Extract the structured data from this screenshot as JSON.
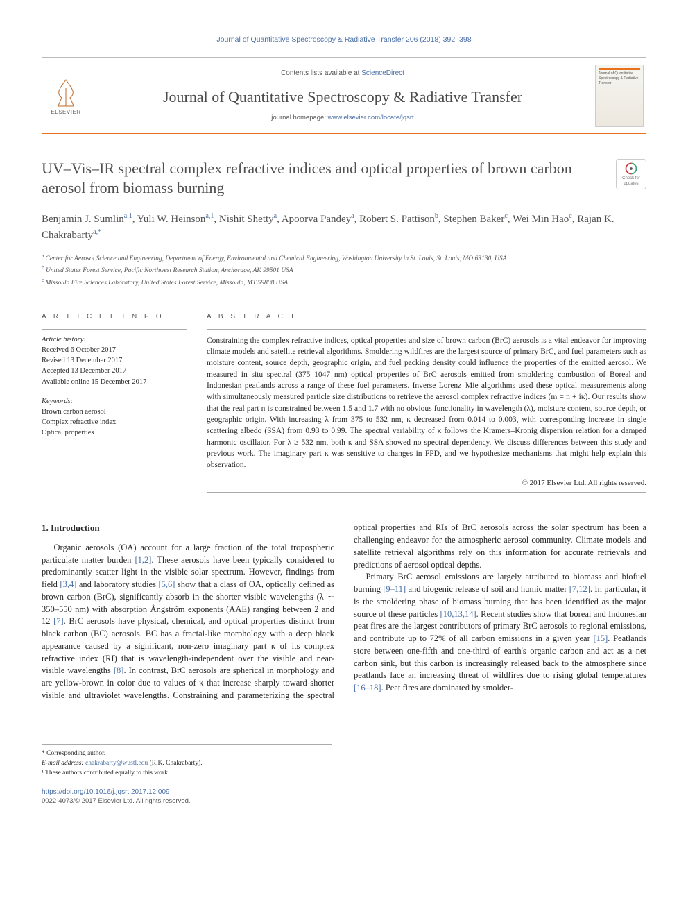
{
  "running_head": "Journal of Quantitative Spectroscopy & Radiative Transfer 206 (2018) 392–398",
  "publisher": {
    "name": "ELSEVIER"
  },
  "masthead": {
    "contents_prefix": "Contents lists available at ",
    "contents_link": "ScienceDirect",
    "journal_name": "Journal of Quantitative Spectroscopy & Radiative Transfer",
    "homepage_prefix": "journal homepage: ",
    "homepage_url": "www.elsevier.com/locate/jqsrt",
    "cover_label": "Journal of Quantitative Spectroscopy & Radiative Transfer"
  },
  "crossmark": {
    "line1": "Check for",
    "line2": "updates"
  },
  "title": "UV–Vis–IR spectral complex refractive indices and optical properties of brown carbon aerosol from biomass burning",
  "authors_html": "Benjamin J. Sumlin|a,1|, Yuli W. Heinson|a,1|, Nishit Shetty|a|, Apoorva Pandey|a|, Robert S. Pattison|b|, Stephen Baker|c|, Wei Min Hao|c|, Rajan K. Chakrabarty|a,*|",
  "affiliations": [
    {
      "key": "a",
      "text": "Center for Aerosol Science and Engineering, Department of Energy, Environmental and Chemical Engineering, Washington University in St. Louis, St. Louis, MO 63130, USA"
    },
    {
      "key": "b",
      "text": "United States Forest Service, Pacific Northwest Research Station, Anchorage, AK 99501 USA"
    },
    {
      "key": "c",
      "text": "Missoula Fire Sciences Laboratory, United States Forest Service, Missoula, MT 59808 USA"
    }
  ],
  "article_info": {
    "heading": "A R T I C L E   I N F O",
    "history_label": "Article history:",
    "history": [
      "Received 6 October 2017",
      "Revised 13 December 2017",
      "Accepted 13 December 2017",
      "Available online 15 December 2017"
    ],
    "keywords_label": "Keywords:",
    "keywords": [
      "Brown carbon aerosol",
      "Complex refractive index",
      "Optical properties"
    ]
  },
  "abstract": {
    "heading": "A B S T R A C T",
    "text": "Constraining the complex refractive indices, optical properties and size of brown carbon (BrC) aerosols is a vital endeavor for improving climate models and satellite retrieval algorithms. Smoldering wildfires are the largest source of primary BrC, and fuel parameters such as moisture content, source depth, geographic origin, and fuel packing density could influence the properties of the emitted aerosol. We measured in situ spectral (375–1047 nm) optical properties of BrC aerosols emitted from smoldering combustion of Boreal and Indonesian peatlands across a range of these fuel parameters. Inverse Lorenz–Mie algorithms used these optical measurements along with simultaneously measured particle size distributions to retrieve the aerosol complex refractive indices (m = n + iκ). Our results show that the real part n is constrained between 1.5 and 1.7 with no obvious functionality in wavelength (λ), moisture content, source depth, or geographic origin. With increasing λ from 375 to 532 nm, κ decreased from 0.014 to 0.003, with corresponding increase in single scattering albedo (SSA) from 0.93 to 0.99. The spectral variability of κ follows the Kramers–Kronig dispersion relation for a damped harmonic oscillator. For λ ≥ 532 nm, both κ and SSA showed no spectral dependency. We discuss differences between this study and previous work. The imaginary part κ was sensitive to changes in FPD, and we hypothesize mechanisms that might help explain this observation.",
    "copyright": "© 2017 Elsevier Ltd. All rights reserved."
  },
  "section1": {
    "heading": "1. Introduction",
    "p1_a": "Organic aerosols (OA) account for a large fraction of the total tropospheric particulate matter burden ",
    "p1_ref1": "[1,2]",
    "p1_b": ". These aerosols have been typically considered to predominantly scatter light in the visible solar spectrum. However, findings from field ",
    "p1_ref2": "[3,4]",
    "p1_c": " and laboratory studies ",
    "p1_ref3": "[5,6]",
    "p1_d": " show that a class of OA, optically defined as brown carbon (BrC), significantly absorb in the shorter visible wavelengths (λ ∼ 350–550 nm) with absorption Ångström exponents (AAE) ranging between 2 and 12 ",
    "p1_ref4": "[7]",
    "p1_e": ". BrC aerosols have physical, chemical, and optical properties distinct from black carbon (BC) aerosols. BC has a fractal-like morphology with a deep black appearance caused by a significant, non-zero imaginary part κ of its complex refractive index (RI) that is wavelength-independent over the visible and near-visible wavelengths ",
    "p1_ref5": "[8]",
    "p1_f": ". In contrast, BrC",
    "p2_a": "aerosols are spherical in morphology and are yellow-brown in color due to values of κ that increase sharply toward shorter visible and ultraviolet wavelengths. Constraining and parameterizing the spectral optical properties and RIs of BrC aerosols across the solar spectrum has been a challenging endeavor for the atmospheric aerosol community. Climate models and satellite retrieval algorithms rely on this information for accurate retrievals and predictions of aerosol optical depths.",
    "p3_a": "Primary BrC aerosol emissions are largely attributed to biomass and biofuel burning ",
    "p3_ref1": "[9–11]",
    "p3_b": " and biogenic release of soil and humic matter ",
    "p3_ref2": "[7,12]",
    "p3_c": ". In particular, it is the smoldering phase of biomass burning that has been identified as the major source of these particles ",
    "p3_ref3": "[10,13,14]",
    "p3_d": ". Recent studies show that boreal and Indonesian peat fires are the largest contributors of primary BrC aerosols to regional emissions, and contribute up to 72% of all carbon emissions in a given year ",
    "p3_ref4": "[15]",
    "p3_e": ". Peatlands store between one-fifth and one-third of earth's organic carbon and act as a net carbon sink, but this carbon is increasingly released back to the atmosphere since peatlands face an increasing threat of wildfires due to rising global temperatures ",
    "p3_ref5": "[16–18]",
    "p3_f": ". Peat fires are dominated by smolder-"
  },
  "footnotes": {
    "corr_label": "* Corresponding author.",
    "email_label": "E-mail address: ",
    "email": "chakrabarty@wustl.edu",
    "email_who": " (R.K. Chakrabarty).",
    "equal": "¹ These authors contributed equally to this work."
  },
  "doi": {
    "url": "https://doi.org/10.1016/j.jqsrt.2017.12.009",
    "issn_line": "0022-4073/© 2017 Elsevier Ltd. All rights reserved."
  },
  "colors": {
    "link": "#4a6fa5",
    "accent": "#e9711c",
    "text": "#2a2a2a"
  }
}
